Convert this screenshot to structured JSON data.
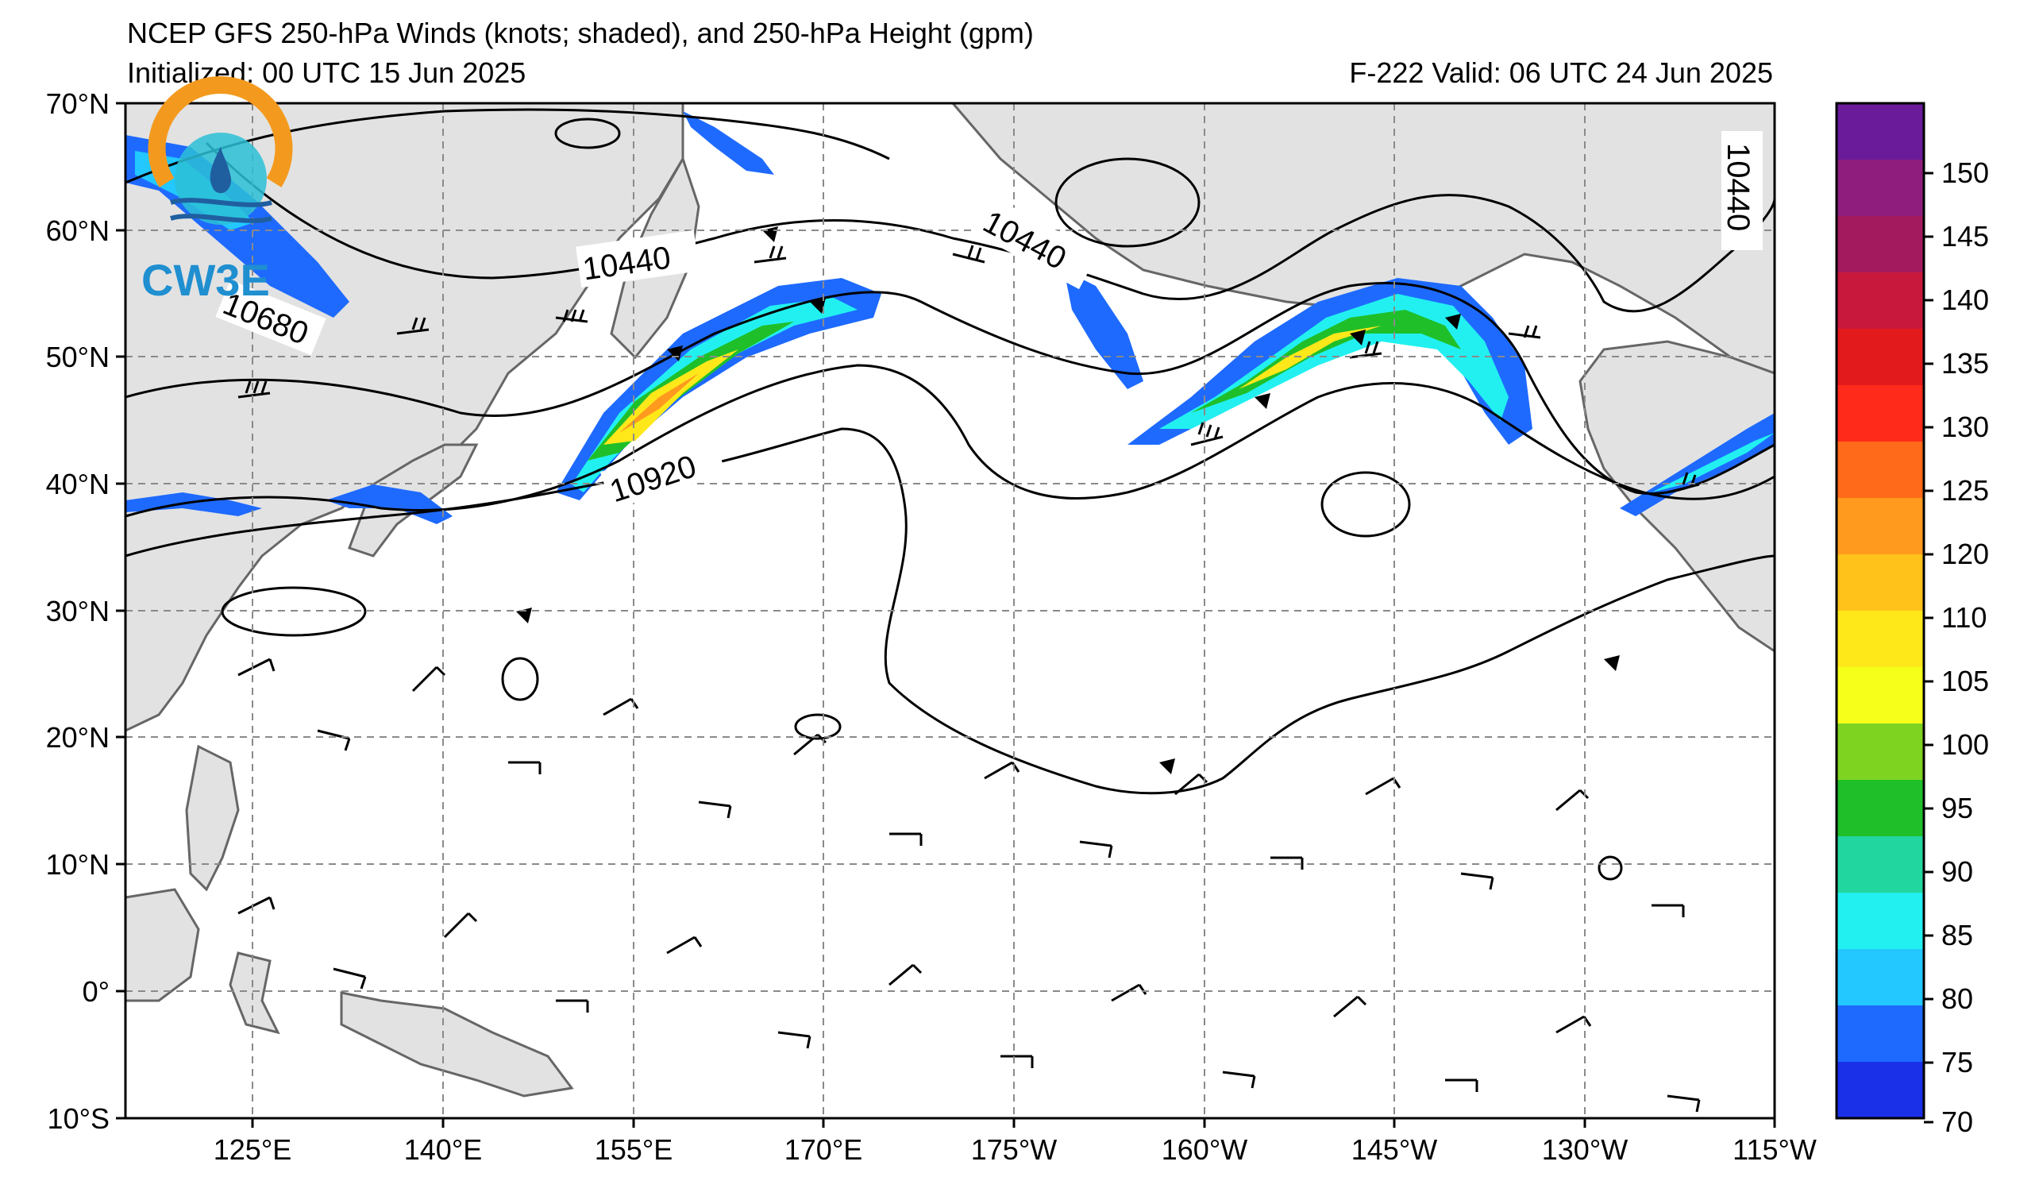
{
  "header": {
    "title": "NCEP GFS 250-hPa Winds (knots; shaded), and 250-hPa Height (gpm)",
    "init": "Initialized: 00 UTC 15 Jun 2025",
    "valid": "F-222  Valid: 06 UTC 24 Jun 2025"
  },
  "logo": {
    "text": "CW3E",
    "colors": [
      "#f39a1e",
      "#1f8fd0",
      "#2bbfd6"
    ]
  },
  "axes": {
    "lat_labels": [
      "70°N",
      "60°N",
      "50°N",
      "40°N",
      "30°N",
      "20°N",
      "10°N",
      "0°",
      "10°S"
    ],
    "lon_labels": [
      "125°E",
      "140°E",
      "155°E",
      "170°E",
      "175°W",
      "160°W",
      "145°W",
      "130°W",
      "115°W"
    ]
  },
  "contour_labels": [
    "10440",
    "10440",
    "10680",
    "10920",
    "10440"
  ],
  "colorbar": {
    "ticks": [
      "150",
      "145",
      "140",
      "135",
      "130",
      "125",
      "120",
      "110",
      "105",
      "100",
      "95",
      "90",
      "85",
      "80",
      "75",
      "70"
    ],
    "colors": [
      "#6a1b9a",
      "#8e1d7e",
      "#a31a5e",
      "#c8183c",
      "#e31a1c",
      "#ff2a1a",
      "#ff6a1a",
      "#ff9a1e",
      "#ffc21a",
      "#ffe81a",
      "#f5ff1a",
      "#7ed321",
      "#1fbf2a",
      "#22d6a0",
      "#22f0f0",
      "#22c8ff",
      "#1e6aff",
      "#1a30e8"
    ]
  }
}
